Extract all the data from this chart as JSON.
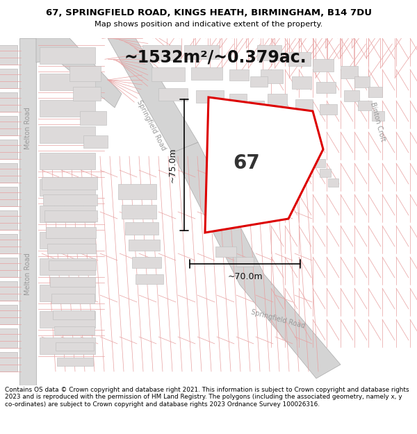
{
  "title_line1": "67, SPRINGFIELD ROAD, KINGS HEATH, BIRMINGHAM, B14 7DU",
  "title_line2": "Map shows position and indicative extent of the property.",
  "area_label": "~1532m²/~0.379ac.",
  "property_number": "67",
  "dim_horizontal": "~70.0m",
  "dim_vertical": "~75.0m",
  "footer_text": "Contains OS data © Crown copyright and database right 2021. This information is subject to Crown copyright and database rights 2023 and is reproduced with the permission of HM Land Registry. The polygons (including the associated geometry, namely x, y co-ordinates) are subject to Crown copyright and database rights 2023 Ordnance Survey 100026316.",
  "map_bg": "#f8f6f6",
  "plot_line_color": "#e8a0a0",
  "plot_line_color2": "#d08080",
  "building_fill": "#dddada",
  "building_edge": "#c8c8c8",
  "road_fill": "#d8d8d8",
  "road_edge": "#bbbbbb",
  "property_fill": "#ffffff",
  "property_edge": "#dd0000",
  "dim_color": "#111111",
  "label_color": "#666666"
}
